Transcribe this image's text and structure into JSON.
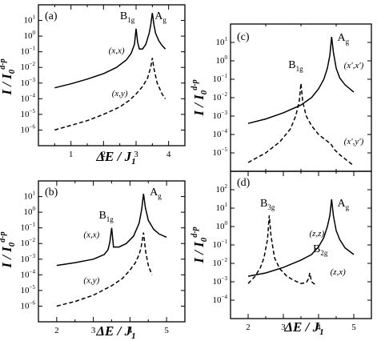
{
  "figure": {
    "x_axis": {
      "main": "ΔE / J",
      "sub": "1"
    },
    "y_axis": {
      "main": "I / I",
      "sub": "0",
      "sup": "d-p"
    }
  },
  "chart_data": [
    {
      "type": "line",
      "panel": "(a)",
      "xlim": [
        0,
        4.5
      ],
      "ylim_log10": [
        -7,
        2
      ],
      "x_ticks": [
        1,
        2,
        3,
        4
      ],
      "y_ticks_exponents": [
        1,
        0,
        -1,
        -2,
        -3,
        -4,
        -5,
        -6
      ],
      "series": [
        {
          "name": "(x,x)",
          "style": "solid",
          "x": [
            0.5,
            1.0,
            1.5,
            2.0,
            2.4,
            2.7,
            2.85,
            2.95,
            3.0,
            3.05,
            3.1,
            3.2,
            3.3,
            3.4,
            3.45,
            3.5,
            3.55,
            3.6,
            3.7,
            3.8,
            3.9
          ],
          "y": [
            0.0005,
            0.0009,
            0.0018,
            0.004,
            0.01,
            0.03,
            0.08,
            0.3,
            3,
            0.4,
            0.15,
            0.15,
            0.3,
            1.5,
            5,
            30,
            5,
            1.5,
            0.5,
            0.25,
            0.15
          ]
        },
        {
          "name": "(x,y)",
          "style": "dashed",
          "x": [
            0.5,
            1.0,
            1.5,
            2.0,
            2.5,
            2.8,
            3.0,
            3.2,
            3.35,
            3.45,
            3.5,
            3.55,
            3.65,
            3.8,
            3.9
          ],
          "y": [
            1e-06,
            2e-06,
            4e-06,
            1e-05,
            3e-05,
            8e-05,
            0.0002,
            0.0006,
            0.002,
            0.01,
            0.04,
            0.008,
            0.001,
            0.0002,
            0.0001
          ]
        }
      ],
      "annotations": [
        {
          "text": "B",
          "sub": "1g",
          "x": 2.73,
          "y": 12
        },
        {
          "text": "A",
          "sub": "g",
          "x": 3.75,
          "y": 12
        },
        {
          "text": "(x,x)",
          "x": 2.4,
          "y": 0.08
        },
        {
          "text": "(x,y)",
          "x": 2.5,
          "y": 0.00015
        }
      ]
    },
    {
      "type": "line",
      "panel": "(b)",
      "xlim": [
        1.5,
        5.5
      ],
      "ylim_log10": [
        -7,
        2
      ],
      "x_ticks": [
        2,
        3,
        4,
        5
      ],
      "y_ticks_exponents": [
        1,
        0,
        -1,
        -2,
        -3,
        -4,
        -5,
        -6
      ],
      "series": [
        {
          "name": "(x,x)",
          "style": "solid",
          "x": [
            2.0,
            2.5,
            3.0,
            3.3,
            3.4,
            3.45,
            3.5,
            3.55,
            3.7,
            3.9,
            4.1,
            4.25,
            4.32,
            4.37,
            4.42,
            4.5,
            4.65,
            4.8,
            5.0
          ],
          "y": [
            0.0004,
            0.0006,
            0.001,
            0.002,
            0.004,
            0.012,
            0.1,
            0.006,
            0.006,
            0.01,
            0.03,
            0.2,
            1.5,
            15,
            2,
            0.3,
            0.08,
            0.04,
            0.025
          ]
        },
        {
          "name": "(x,y)",
          "style": "dashed",
          "x": [
            2.0,
            2.5,
            3.0,
            3.5,
            3.8,
            4.0,
            4.15,
            4.25,
            4.3,
            4.37,
            4.43,
            4.5,
            4.6
          ],
          "y": [
            1e-06,
            2e-06,
            5e-06,
            2e-05,
            6e-05,
            0.0002,
            0.0006,
            0.002,
            0.005,
            0.05,
            0.003,
            0.0004,
            0.0001
          ]
        }
      ],
      "annotations": [
        {
          "text": "B",
          "sub": "1g",
          "x": 3.35,
          "y": 0.4
        },
        {
          "text": "A",
          "sub": "g",
          "x": 4.7,
          "y": 12
        },
        {
          "text": "(x,x)",
          "x": 2.95,
          "y": 0.025
        },
        {
          "text": "(x,y)",
          "x": 2.95,
          "y": 3e-05
        }
      ]
    },
    {
      "type": "line",
      "panel": "(c)",
      "xlim": [
        1.5,
        5.5
      ],
      "ylim_log10": [
        -6,
        2
      ],
      "x_ticks": [],
      "y_ticks_exponents": [
        1,
        0,
        -1,
        -2,
        -3,
        -4,
        -5
      ],
      "series": [
        {
          "name": "(x′,x′)",
          "style": "solid",
          "x": [
            2.0,
            2.5,
            3.0,
            3.5,
            3.8,
            4.0,
            4.15,
            4.25,
            4.32,
            4.37,
            4.42,
            4.5,
            4.6,
            4.75,
            5.0
          ],
          "y": [
            0.0004,
            0.0007,
            0.0015,
            0.004,
            0.01,
            0.03,
            0.1,
            0.4,
            2,
            20,
            3,
            0.4,
            0.12,
            0.05,
            0.02
          ]
        },
        {
          "name": "(x′,y′)",
          "style": "dashed",
          "x": [
            2.0,
            2.5,
            2.9,
            3.2,
            3.35,
            3.45,
            3.5,
            3.55,
            3.65,
            3.8,
            4.0,
            4.2,
            4.35,
            4.45,
            4.6,
            4.8,
            5.0
          ],
          "y": [
            3e-06,
            1e-05,
            4e-05,
            0.0002,
            0.001,
            0.006,
            0.06,
            0.006,
            0.001,
            0.0003,
            0.0001,
            5e-05,
            3e-05,
            1.5e-05,
            8e-06,
            4e-06,
            2e-06
          ]
        }
      ],
      "annotations": [
        {
          "text": "B",
          "sub": "1g",
          "x": 3.35,
          "y": 0.4
        },
        {
          "text": "A",
          "sub": "g",
          "x": 4.7,
          "y": 12
        },
        {
          "text": "(x′,x′)",
          "x": 5.0,
          "y": 0.4
        },
        {
          "text": "(x′,y′)",
          "x": 5.0,
          "y": 3e-05
        }
      ]
    },
    {
      "type": "line",
      "panel": "(d)",
      "xlim": [
        1.5,
        5.5
      ],
      "ylim_log10": [
        -5,
        3
      ],
      "x_ticks": [
        2,
        3,
        4,
        5
      ],
      "y_ticks_exponents": [
        2,
        1,
        0,
        -1,
        -2,
        -3,
        -4
      ],
      "series": [
        {
          "name": "(z,z)",
          "style": "solid",
          "x": [
            2.0,
            2.5,
            3.0,
            3.5,
            3.8,
            4.0,
            4.15,
            4.25,
            4.32,
            4.37,
            4.42,
            4.5,
            4.6,
            4.75,
            5.0
          ],
          "y": [
            0.002,
            0.003,
            0.006,
            0.015,
            0.03,
            0.08,
            0.25,
            1,
            4,
            30,
            4,
            0.6,
            0.2,
            0.07,
            0.03
          ]
        },
        {
          "name": "(z,x)",
          "style": "dashed",
          "x": [
            2.0,
            2.2,
            2.35,
            2.45,
            2.55,
            2.6,
            2.65,
            2.75,
            2.9,
            3.1,
            3.3,
            3.5,
            3.65,
            3.72,
            3.75,
            3.8,
            3.95
          ],
          "y": [
            0.0008,
            0.002,
            0.006,
            0.02,
            0.2,
            4,
            0.3,
            0.02,
            0.005,
            0.002,
            0.0012,
            0.0008,
            0.0009,
            0.0015,
            0.003,
            0.001,
            0.0006
          ]
        }
      ],
      "annotations": [
        {
          "text": "B",
          "sub": "3g",
          "x": 2.55,
          "y": 12
        },
        {
          "text": "A",
          "sub": "g",
          "x": 4.7,
          "y": 12
        },
        {
          "text": "(z,z)",
          "x": 3.95,
          "y": 0.3
        },
        {
          "text": "B",
          "sub": "2g",
          "x": 4.05,
          "y": 0.04
        },
        {
          "text": "(z,x)",
          "x": 4.55,
          "y": 0.0025
        }
      ]
    }
  ]
}
